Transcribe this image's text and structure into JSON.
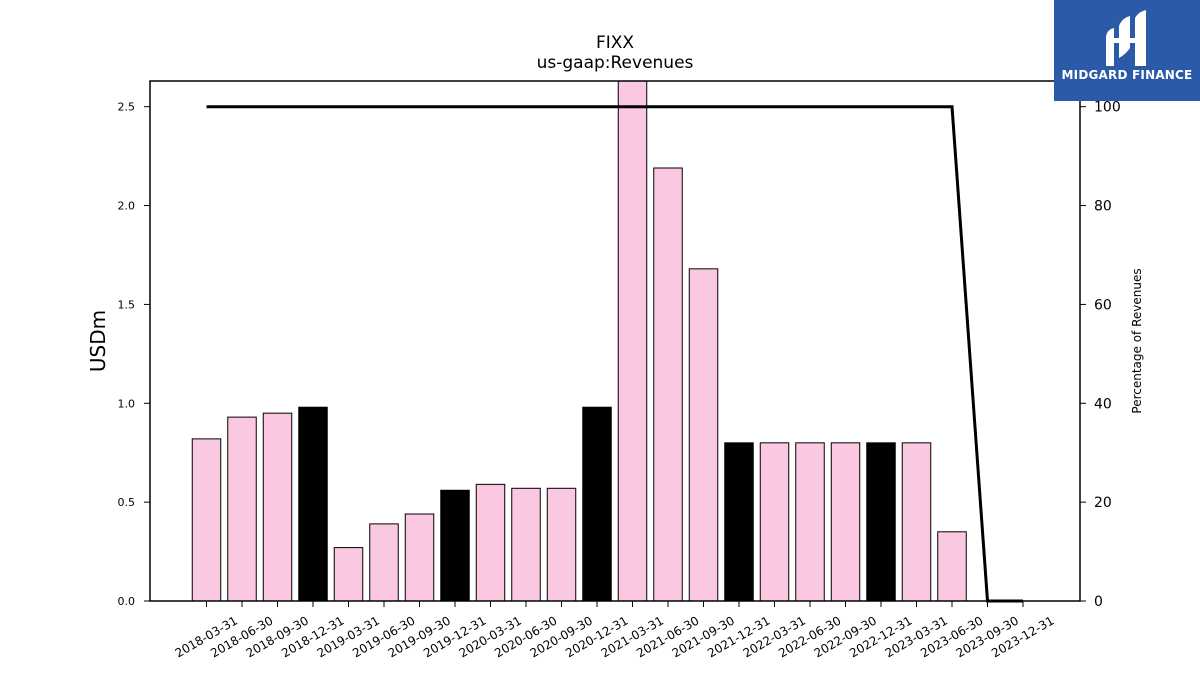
{
  "chart_data": {
    "type": "bar",
    "title": "FIXX",
    "subtitle": "us-gaap:Revenues",
    "ylabel": "USDm",
    "y2label": "Percentage of Revenues",
    "ylim": [
      0,
      2.63
    ],
    "y2lim": [
      0,
      105.2
    ],
    "yticks": [
      "0.0",
      "0.5",
      "1.0",
      "1.5",
      "2.0",
      "2.5"
    ],
    "y2ticks": [
      "0",
      "20",
      "40",
      "60",
      "80",
      "100"
    ],
    "categories": [
      "2018-03-31",
      "2018-06-30",
      "2018-09-30",
      "2018-12-31",
      "2019-03-31",
      "2019-06-30",
      "2019-09-30",
      "2019-12-31",
      "2020-03-31",
      "2020-06-30",
      "2020-09-30",
      "2020-12-31",
      "2021-03-31",
      "2021-06-30",
      "2021-09-30",
      "2021-12-31",
      "2022-03-31",
      "2022-06-30",
      "2022-09-30",
      "2022-12-31",
      "2023-03-31",
      "2023-06-30",
      "2023-09-30",
      "2023-12-31"
    ],
    "values": [
      0.82,
      0.93,
      0.95,
      0.98,
      0.27,
      0.39,
      0.44,
      0.56,
      0.59,
      0.57,
      0.57,
      0.98,
      2.65,
      2.19,
      1.68,
      0.8,
      0.8,
      0.8,
      0.8,
      0.8,
      0.8,
      0.35,
      0.0,
      0.0
    ],
    "highlight": [
      false,
      false,
      false,
      true,
      false,
      false,
      false,
      true,
      false,
      false,
      false,
      true,
      false,
      false,
      false,
      true,
      false,
      false,
      false,
      true,
      false,
      false,
      false,
      false
    ],
    "line_values": [
      100,
      100,
      100,
      100,
      100,
      100,
      100,
      100,
      100,
      100,
      100,
      100,
      100,
      100,
      100,
      100,
      100,
      100,
      100,
      100,
      100,
      100,
      0,
      0
    ],
    "colors": {
      "bar": "#fbc8e1",
      "highlight": "#000000",
      "line": "#000000"
    }
  },
  "logo": {
    "text": "MIDGARD FINANCE",
    "icon": "midgard-logo-icon"
  }
}
